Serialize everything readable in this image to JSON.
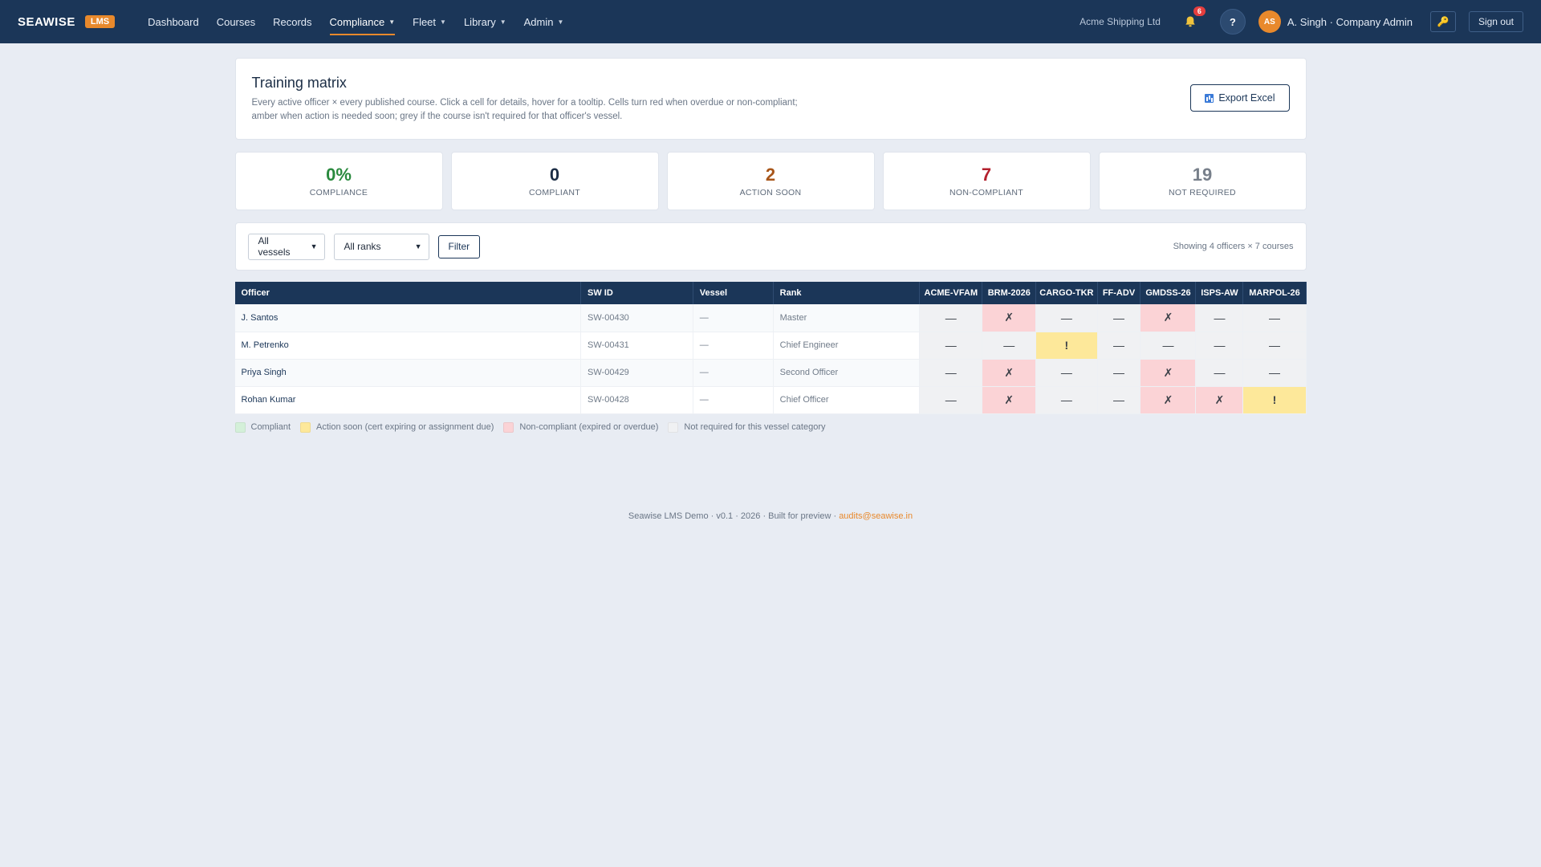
{
  "app": {
    "brand": "SEAWISE",
    "badge": "LMS",
    "nav": [
      {
        "label": "Dashboard",
        "has_menu": false,
        "active": false
      },
      {
        "label": "Courses",
        "has_menu": false,
        "active": false
      },
      {
        "label": "Records",
        "has_menu": false,
        "active": false
      },
      {
        "label": "Compliance",
        "has_menu": true,
        "active": true
      },
      {
        "label": "Fleet",
        "has_menu": true,
        "active": false
      },
      {
        "label": "Library",
        "has_menu": true,
        "active": false
      },
      {
        "label": "Admin",
        "has_menu": true,
        "active": false
      }
    ],
    "org": "Acme Shipping Ltd",
    "notification_count": "6",
    "help_label": "?",
    "avatar_initials": "AS",
    "user_label": "A. Singh · Company Admin",
    "signout_label": "Sign out",
    "accent_color": "#e8892c",
    "topbar_color": "#1b3658"
  },
  "header": {
    "title": "Training matrix",
    "description_line1": "Every active officer × every published course. Click a cell for details, hover for a tooltip. Cells turn red when overdue or non-compliant;",
    "description_line2": "amber when action is needed soon; grey if the course isn't required for that officer's vessel.",
    "export_label": "Export Excel",
    "export_icon": "spreadsheet-chart-icon"
  },
  "stats": [
    {
      "value": "0%",
      "label": "COMPLIANCE",
      "color": "#2a8a3e"
    },
    {
      "value": "0",
      "label": "COMPLIANT",
      "color": "#1b2d45"
    },
    {
      "value": "2",
      "label": "ACTION SOON",
      "color": "#a8561a"
    },
    {
      "value": "7",
      "label": "NON-COMPLIANT",
      "color": "#b3202d"
    },
    {
      "value": "19",
      "label": "NOT REQUIRED",
      "color": "#777f8a"
    }
  ],
  "filters": {
    "vessel_selected": "All vessels",
    "rank_selected": "All ranks",
    "filter_label": "Filter",
    "showing": "Showing 4 officers × 7 courses"
  },
  "table": {
    "columns": [
      "Officer",
      "SW ID",
      "Vessel",
      "Rank"
    ],
    "courses": [
      "ACME-VFAM",
      "BRM-2026",
      "CARGO-TKR",
      "FF-ADV",
      "GMDSS-26",
      "ISPS-AW",
      "MARPOL-26"
    ],
    "rows": [
      {
        "officer": "J. Santos",
        "sw_id": "SW-00430",
        "vessel": "—",
        "rank": "Master",
        "cells": [
          "nr",
          "nc",
          "nr",
          "nr",
          "nc",
          "nr",
          "nr"
        ]
      },
      {
        "officer": "M. Petrenko",
        "sw_id": "SW-00431",
        "vessel": "—",
        "rank": "Chief Engineer",
        "cells": [
          "nr",
          "nr",
          "soon",
          "nr",
          "nr",
          "nr",
          "nr"
        ]
      },
      {
        "officer": "Priya Singh",
        "sw_id": "SW-00429",
        "vessel": "—",
        "rank": "Second Officer",
        "cells": [
          "nr",
          "nc",
          "nr",
          "nr",
          "nc",
          "nr",
          "nr"
        ]
      },
      {
        "officer": "Rohan Kumar",
        "sw_id": "SW-00428",
        "vessel": "—",
        "rank": "Chief Officer",
        "cells": [
          "nr",
          "nc",
          "nr",
          "nr",
          "nc",
          "nc",
          "soon"
        ]
      }
    ],
    "cell_symbols": {
      "nr": "—",
      "nc": "✗",
      "soon": "!",
      "ok": "✓"
    }
  },
  "legend": [
    {
      "key": "ok",
      "label": "Compliant",
      "color": "#d4f0d9"
    },
    {
      "key": "soon",
      "label": "Action soon (cert expiring or assignment due)",
      "color": "#fde89a"
    },
    {
      "key": "nc",
      "label": "Non-compliant (expired or overdue)",
      "color": "#fbd3d6"
    },
    {
      "key": "nr",
      "label": "Not required for this vessel category",
      "color": "#f0f1f3"
    }
  ],
  "footer": {
    "text": "Seawise LMS Demo · v0.1 · 2026 · Built for preview · ",
    "email": "audits@seawise.in"
  }
}
